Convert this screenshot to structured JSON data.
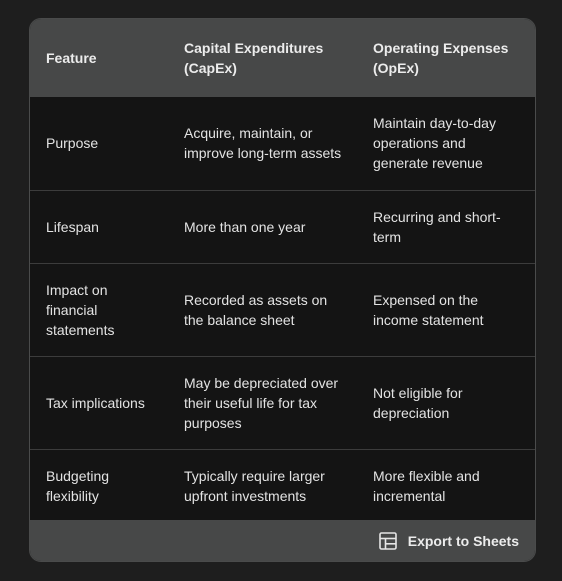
{
  "table": {
    "headers": [
      "Feature",
      "Capital Expenditures\n(CapEx)",
      "Operating Expenses\n(OpEx)"
    ],
    "rows": [
      [
        "Purpose",
        "Acquire, maintain, or improve long-term assets",
        "Maintain day-to-day operations and generate revenue"
      ],
      [
        "Lifespan",
        "More than one year",
        "Recurring and short-term"
      ],
      [
        "Impact on financial statements",
        "Recorded as assets on the balance sheet",
        "Expensed on the income statement"
      ],
      [
        "Tax implications",
        "May be depreciated over their useful life for tax purposes",
        "Not eligible for depreciation"
      ],
      [
        "Budgeting flexibility",
        "Typically require larger upfront investments",
        "More flexible and incremental"
      ]
    ]
  },
  "footer": {
    "export_label": "Export to Sheets",
    "export_icon": "table-grid-icon"
  }
}
